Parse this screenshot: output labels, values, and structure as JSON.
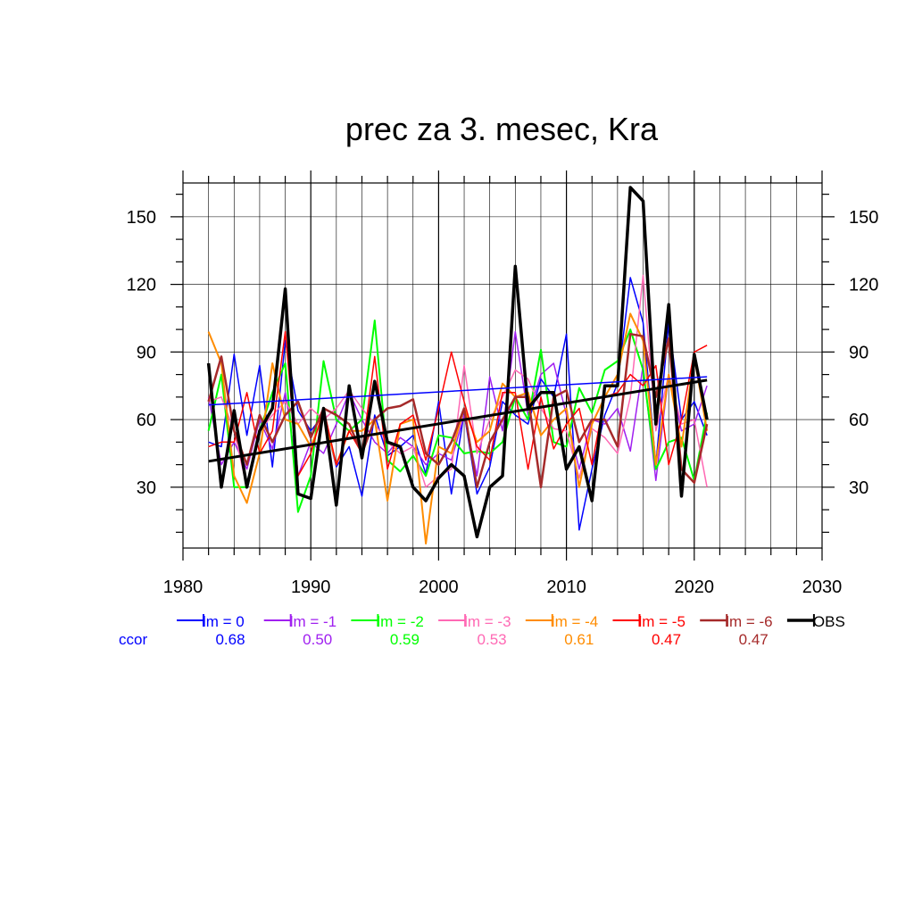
{
  "chart_data": {
    "type": "line",
    "title": "prec za 3. mesec, Kra",
    "xlabel": "",
    "ylabel": "",
    "xlim": [
      1980,
      2030
    ],
    "ylim": [
      3,
      165
    ],
    "xticks": [
      1980,
      1990,
      2000,
      2010,
      2020,
      2030
    ],
    "yticks": [
      30,
      60,
      90,
      120,
      150
    ],
    "grid": true,
    "x": [
      1982,
      1983,
      1984,
      1985,
      1986,
      1987,
      1988,
      1989,
      1990,
      1991,
      1992,
      1993,
      1994,
      1995,
      1996,
      1997,
      1998,
      1999,
      2000,
      2001,
      2002,
      2003,
      2004,
      2005,
      2006,
      2007,
      2008,
      2009,
      2010,
      2011,
      2012,
      2013,
      2014,
      2015,
      2016,
      2017,
      2018,
      2019,
      2020,
      2021
    ],
    "series": [
      {
        "name": "lm = 0",
        "color": "#0000ff",
        "width": 1.5,
        "values": [
          50,
          48,
          89,
          53,
          84,
          39,
          95,
          64,
          55,
          62,
          39,
          48,
          26,
          62,
          44,
          48,
          53,
          36,
          68,
          27,
          63,
          27,
          39,
          68,
          62,
          58,
          78,
          70,
          98,
          11,
          38,
          62,
          76,
          123,
          103,
          40,
          103,
          60,
          68,
          53
        ]
      },
      {
        "name": "lm = -1",
        "color": "#a020f0",
        "width": 1.5,
        "values": [
          70,
          40,
          50,
          38,
          60,
          47,
          72,
          35,
          50,
          45,
          58,
          72,
          60,
          50,
          45,
          52,
          48,
          40,
          45,
          42,
          62,
          35,
          79,
          55,
          99,
          62,
          80,
          85,
          62,
          38,
          60,
          58,
          65,
          46,
          84,
          33,
          80,
          55,
          58,
          75
        ]
      },
      {
        "name": "lm = -2",
        "color": "#00ff00",
        "width": 2,
        "values": [
          55,
          80,
          30,
          30,
          55,
          72,
          85,
          19,
          35,
          86,
          60,
          55,
          60,
          104,
          42,
          37,
          44,
          35,
          53,
          52,
          45,
          46,
          45,
          50,
          70,
          60,
          91,
          50,
          48,
          74,
          63,
          82,
          86,
          100,
          82,
          38,
          50,
          52,
          33,
          63
        ]
      },
      {
        "name": "lm = -3",
        "color": "#ff69b4",
        "width": 1.5,
        "values": [
          68,
          70,
          55,
          30,
          55,
          62,
          68,
          58,
          65,
          60,
          65,
          73,
          65,
          58,
          50,
          45,
          48,
          30,
          35,
          38,
          84,
          45,
          60,
          70,
          82,
          78,
          65,
          56,
          55,
          34,
          56,
          52,
          45,
          70,
          124,
          55,
          80,
          58,
          60,
          30
        ]
      },
      {
        "name": "lm = -4",
        "color": "#ff8c00",
        "width": 2,
        "values": [
          99,
          85,
          35,
          23,
          45,
          85,
          60,
          58,
          48,
          62,
          40,
          55,
          55,
          60,
          24,
          58,
          60,
          5,
          48,
          45,
          65,
          50,
          55,
          76,
          70,
          72,
          53,
          60,
          65,
          30,
          58,
          70,
          80,
          107,
          95,
          40,
          80,
          48,
          88,
          55
        ]
      },
      {
        "name": "lm = -5",
        "color": "#ff0000",
        "width": 1.5,
        "values": [
          48,
          50,
          50,
          72,
          45,
          55,
          99,
          35,
          45,
          65,
          40,
          55,
          45,
          88,
          38,
          58,
          62,
          42,
          65,
          90,
          68,
          48,
          42,
          72,
          72,
          38,
          70,
          47,
          58,
          65,
          40,
          70,
          72,
          80,
          75,
          84,
          40,
          60,
          90,
          93
        ]
      },
      {
        "name": "lm = -6",
        "color": "#a52a2a",
        "width": 2.5,
        "values": [
          68,
          88,
          55,
          40,
          62,
          50,
          62,
          68,
          52,
          65,
          62,
          58,
          45,
          60,
          65,
          66,
          69,
          45,
          40,
          50,
          65,
          30,
          50,
          60,
          70,
          70,
          30,
          70,
          73,
          50,
          60,
          60,
          48,
          98,
          97,
          70,
          96,
          38,
          32,
          58
        ]
      },
      {
        "name": "OBS",
        "color": "#000000",
        "width": 3.5,
        "values": [
          85,
          30,
          64,
          30,
          55,
          65,
          118,
          27,
          25,
          65,
          22,
          75,
          43,
          77,
          50,
          48,
          30,
          24,
          34,
          40,
          35,
          8,
          30,
          35,
          128,
          65,
          72,
          72,
          38,
          48,
          24,
          75,
          75,
          163,
          157,
          58,
          111,
          26,
          89,
          60
        ]
      }
    ],
    "trend_lines": [
      {
        "color": "#0000ff",
        "width": 1.5,
        "x": [
          1982,
          2021
        ],
        "y": [
          66.5,
          79
        ]
      },
      {
        "color": "#000000",
        "width": 3,
        "x": [
          1982,
          2021
        ],
        "y": [
          41.5,
          77.5
        ]
      }
    ],
    "legend": {
      "placement": "bottom",
      "ccor_label": "ccor",
      "ccor_color": "#0000ff",
      "ccor_values": [
        "0.68",
        "0.50",
        "0.59",
        "0.53",
        "0.61",
        "0.47",
        "0.47"
      ]
    }
  }
}
